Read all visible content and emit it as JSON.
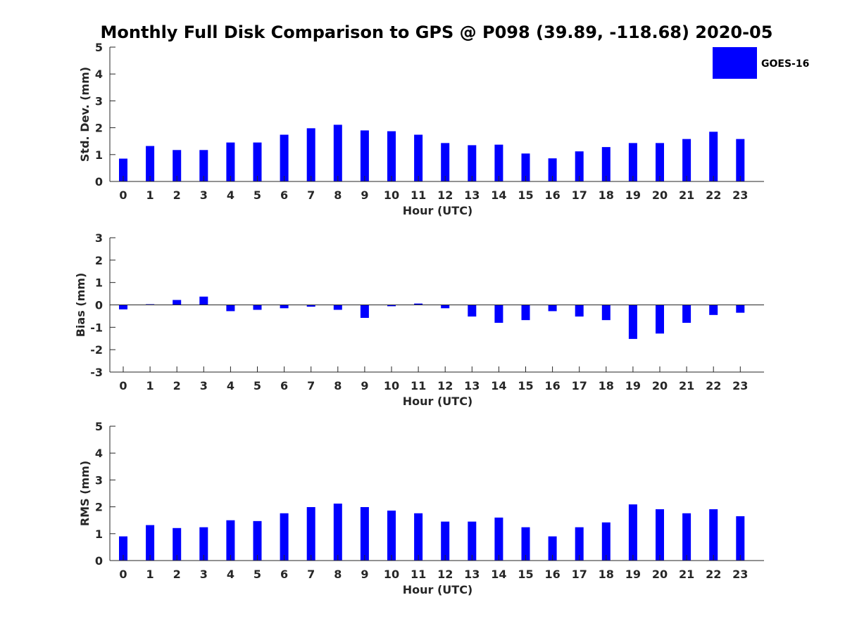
{
  "title": "Monthly Full Disk Comparison to GPS @ P098 (39.89, -118.68) 2020-05",
  "legend": {
    "label": "GOES-16",
    "color": "#0000ff"
  },
  "chart_data": [
    {
      "type": "bar",
      "name": "std",
      "series_name": "GOES-16",
      "color": "#0000ff",
      "xlabel": "Hour (UTC)",
      "ylabel": "Std. Dev. (mm)",
      "categories": [
        "0",
        "1",
        "2",
        "3",
        "4",
        "5",
        "6",
        "7",
        "8",
        "9",
        "10",
        "11",
        "12",
        "13",
        "14",
        "15",
        "16",
        "17",
        "18",
        "19",
        "20",
        "21",
        "22",
        "23"
      ],
      "values": [
        0.85,
        1.32,
        1.17,
        1.17,
        1.45,
        1.45,
        1.74,
        1.98,
        2.11,
        1.9,
        1.87,
        1.74,
        1.43,
        1.35,
        1.37,
        1.04,
        0.86,
        1.12,
        1.28,
        1.43,
        1.43,
        1.58,
        1.85,
        1.58
      ],
      "ylim": [
        0,
        5
      ],
      "yticks": [
        "0",
        "1",
        "2",
        "3",
        "4",
        "5"
      ],
      "legend": "top-right",
      "grid": false
    },
    {
      "type": "bar",
      "name": "bias",
      "series_name": "GOES-16",
      "color": "#0000ff",
      "xlabel": "Hour (UTC)",
      "ylabel": "Bias (mm)",
      "categories": [
        "0",
        "1",
        "2",
        "3",
        "4",
        "5",
        "6",
        "7",
        "8",
        "9",
        "10",
        "11",
        "12",
        "13",
        "14",
        "15",
        "16",
        "17",
        "18",
        "19",
        "20",
        "21",
        "22",
        "23"
      ],
      "values": [
        -0.2,
        0.03,
        0.22,
        0.37,
        -0.28,
        -0.22,
        -0.15,
        -0.08,
        -0.22,
        -0.58,
        -0.06,
        0.06,
        -0.15,
        -0.52,
        -0.8,
        -0.68,
        -0.28,
        -0.52,
        -0.68,
        -1.52,
        -1.28,
        -0.8,
        -0.45,
        -0.35
      ],
      "ylim": [
        -3,
        3
      ],
      "yticks": [
        "-3",
        "-2",
        "-1",
        "0",
        "1",
        "2",
        "3"
      ],
      "grid": false
    },
    {
      "type": "bar",
      "name": "rms",
      "series_name": "GOES-16",
      "color": "#0000ff",
      "xlabel": "Hour (UTC)",
      "ylabel": "RMS (mm)",
      "categories": [
        "0",
        "1",
        "2",
        "3",
        "4",
        "5",
        "6",
        "7",
        "8",
        "9",
        "10",
        "11",
        "12",
        "13",
        "14",
        "15",
        "16",
        "17",
        "18",
        "19",
        "20",
        "21",
        "22",
        "23"
      ],
      "values": [
        0.9,
        1.32,
        1.21,
        1.24,
        1.5,
        1.47,
        1.76,
        1.99,
        2.12,
        1.99,
        1.86,
        1.76,
        1.45,
        1.45,
        1.6,
        1.24,
        0.9,
        1.24,
        1.42,
        2.09,
        1.91,
        1.76,
        1.91,
        1.65
      ],
      "ylim": [
        0,
        5
      ],
      "yticks": [
        "0",
        "1",
        "2",
        "3",
        "4",
        "5"
      ],
      "grid": false
    }
  ]
}
